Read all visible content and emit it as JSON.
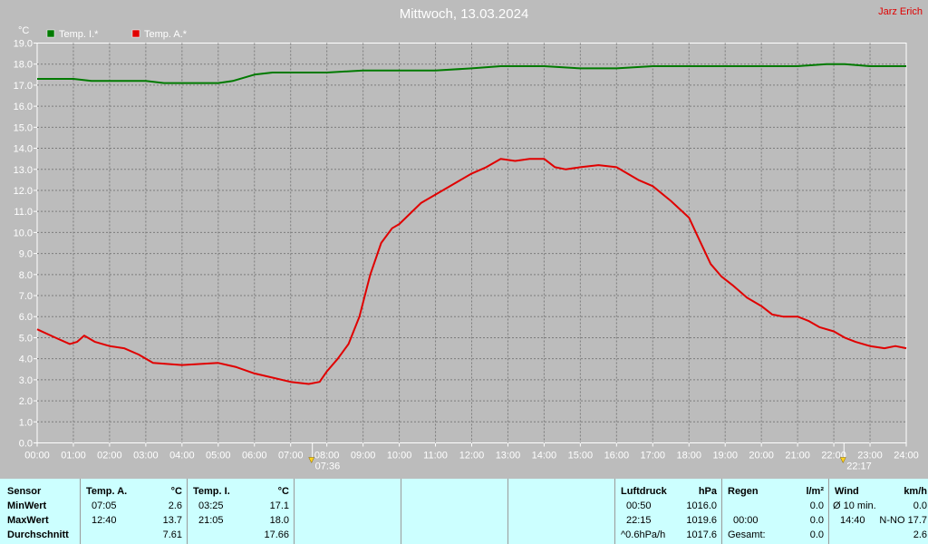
{
  "header": {
    "title": "Mittwoch, 13.03.2024",
    "author": "Jarz Erich"
  },
  "colors": {
    "outside": "#e00000",
    "inside": "#007a00",
    "background": "#bcbcbc",
    "table_bg": "#ccffff"
  },
  "chart_data": {
    "type": "line",
    "ylabel": "°C",
    "ylim": [
      0,
      19
    ],
    "yticks": [
      "0.0",
      "1.0",
      "2.0",
      "3.0",
      "4.0",
      "5.0",
      "6.0",
      "7.0",
      "8.0",
      "9.0",
      "10.0",
      "11.0",
      "12.0",
      "13.0",
      "14.0",
      "15.0",
      "16.0",
      "17.0",
      "18.0",
      "19.0"
    ],
    "xlim": [
      0,
      24
    ],
    "xticks": [
      "00:00",
      "01:00",
      "02:00",
      "03:00",
      "04:00",
      "05:00",
      "06:00",
      "07:00",
      "08:00",
      "09:00",
      "10:00",
      "11:00",
      "12:00",
      "13:00",
      "14:00",
      "15:00",
      "16:00",
      "17:00",
      "18:00",
      "19:00",
      "20:00",
      "21:00",
      "22:00",
      "23:00",
      "24:00"
    ],
    "grid": true,
    "legend_position": "top-left",
    "sunrise": {
      "time": "07:36",
      "hour": 7.6
    },
    "sunset": {
      "time": "22:17",
      "hour": 22.28
    },
    "series": [
      {
        "name": "Temp. I.*",
        "color": "#007a00",
        "x": [
          0,
          1,
          1.5,
          2,
          3,
          3.5,
          4,
          5,
          5.4,
          6,
          6.5,
          7,
          8,
          9,
          10,
          11,
          12,
          12.8,
          14,
          15,
          16,
          17,
          18,
          19,
          20,
          21,
          21.8,
          22.3,
          23,
          24
        ],
        "y": [
          17.3,
          17.3,
          17.2,
          17.2,
          17.2,
          17.1,
          17.1,
          17.1,
          17.2,
          17.5,
          17.6,
          17.6,
          17.6,
          17.7,
          17.7,
          17.7,
          17.8,
          17.9,
          17.9,
          17.8,
          17.8,
          17.9,
          17.9,
          17.9,
          17.9,
          17.9,
          18.0,
          18.0,
          17.9,
          17.9
        ]
      },
      {
        "name": "Temp. A.*",
        "color": "#e00000",
        "x": [
          0,
          0.5,
          0.9,
          1.1,
          1.3,
          1.6,
          2,
          2.4,
          2.8,
          3.2,
          4,
          5,
          5.5,
          6,
          6.5,
          7,
          7.5,
          7.8,
          8,
          8.3,
          8.6,
          8.9,
          9.2,
          9.5,
          9.8,
          10,
          10.3,
          10.6,
          11,
          11.5,
          12,
          12.4,
          12.8,
          13.2,
          13.6,
          14,
          14.3,
          14.6,
          15,
          15.5,
          16,
          16.3,
          16.6,
          17,
          17.5,
          18,
          18.3,
          18.6,
          18.9,
          19.2,
          19.6,
          20,
          20.3,
          20.6,
          21,
          21.3,
          21.6,
          22,
          22.3,
          22.6,
          23,
          23.4,
          23.7,
          24
        ],
        "y": [
          5.4,
          5.0,
          4.7,
          4.8,
          5.1,
          4.8,
          4.6,
          4.5,
          4.2,
          3.8,
          3.7,
          3.8,
          3.6,
          3.3,
          3.1,
          2.9,
          2.8,
          2.9,
          3.4,
          4.0,
          4.7,
          6.0,
          8.0,
          9.5,
          10.2,
          10.4,
          10.9,
          11.4,
          11.8,
          12.3,
          12.8,
          13.1,
          13.5,
          13.4,
          13.5,
          13.5,
          13.1,
          13.0,
          13.1,
          13.2,
          13.1,
          12.8,
          12.5,
          12.2,
          11.5,
          10.7,
          9.6,
          8.5,
          7.9,
          7.5,
          6.9,
          6.5,
          6.1,
          6.0,
          6.0,
          5.8,
          5.5,
          5.3,
          5.0,
          4.8,
          4.6,
          4.5,
          4.6,
          4.5
        ]
      }
    ]
  },
  "table": {
    "sensor": {
      "header": "Sensor",
      "rows": [
        "MinWert",
        "MaxWert",
        "Durchschnitt"
      ]
    },
    "temp_a": {
      "header": "Temp. A.",
      "unit": "°C",
      "min_time": "07:05",
      "min": "2.6",
      "max_time": "12:40",
      "max": "13.7",
      "avg": "7.61"
    },
    "temp_i": {
      "header": "Temp. I.",
      "unit": "°C",
      "min_time": "03:25",
      "min": "17.1",
      "max_time": "21:05",
      "max": "18.0",
      "avg": "17.66"
    },
    "pressure": {
      "header": "Luftdruck",
      "unit": "hPa",
      "min_time": "00:50",
      "min": "1016.0",
      "max_time": "22:15",
      "max": "1019.6",
      "avg_label": "^0.6hPa/h",
      "avg": "1017.6"
    },
    "rain": {
      "header": "Regen",
      "unit": "l/m²",
      "row2_time": "00:00",
      "row2": "0.0",
      "row3_label": "Gesamt:",
      "row3": "0.0",
      "row1": "0.0"
    },
    "wind": {
      "header": "Wind",
      "unit": "km/h",
      "row1_label": "Ø 10 min.",
      "row1": "0.0",
      "max_time": "14:40",
      "max": "N-NO 17.7",
      "avg": "2.6"
    }
  }
}
